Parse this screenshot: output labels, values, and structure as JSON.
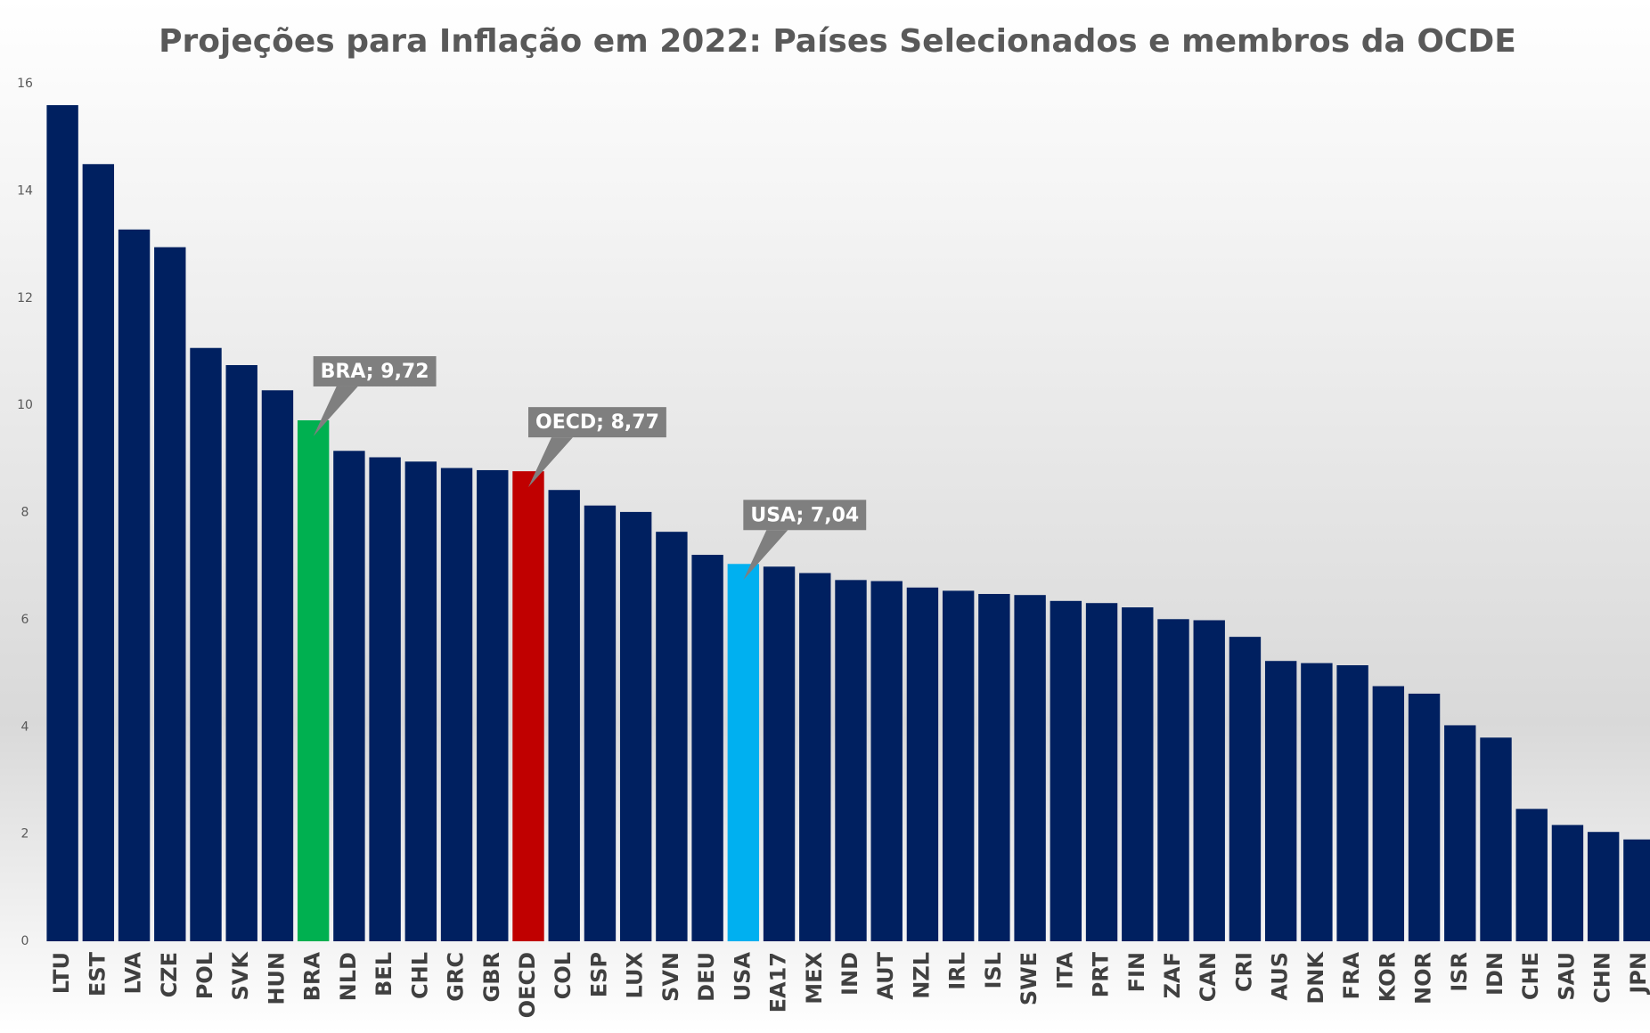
{
  "chart_data": {
    "type": "bar",
    "title": "Projeções para Inflação em 2022: Países Selecionados e membros da OCDE",
    "categories": [
      "LTU",
      "EST",
      "LVA",
      "CZE",
      "POL",
      "SVK",
      "HUN",
      "BRA",
      "NLD",
      "BEL",
      "CHL",
      "GRC",
      "GBR",
      "OECD",
      "COL",
      "ESP",
      "LUX",
      "SVN",
      "DEU",
      "USA",
      "EA17",
      "MEX",
      "IND",
      "AUT",
      "NZL",
      "IRL",
      "ISL",
      "SWE",
      "ITA",
      "PRT",
      "FIN",
      "ZAF",
      "CAN",
      "CRI",
      "AUS",
      "DNK",
      "FRA",
      "KOR",
      "NOR",
      "ISR",
      "IDN",
      "CHE",
      "SAU",
      "CHN",
      "JPN"
    ],
    "values": [
      15.6,
      14.5,
      13.28,
      12.95,
      11.07,
      10.75,
      10.28,
      9.72,
      9.15,
      9.03,
      8.95,
      8.83,
      8.79,
      8.77,
      8.42,
      8.13,
      8.01,
      7.64,
      7.21,
      7.04,
      6.99,
      6.87,
      6.74,
      6.72,
      6.6,
      6.54,
      6.48,
      6.46,
      6.35,
      6.31,
      6.23,
      6.01,
      5.99,
      5.68,
      5.23,
      5.19,
      5.15,
      4.76,
      4.62,
      4.03,
      3.8,
      2.47,
      2.17,
      2.04,
      1.9
    ],
    "value_labels": [
      null,
      null,
      null,
      null,
      null,
      null,
      null,
      "BRA; 9,72",
      null,
      null,
      null,
      null,
      null,
      "OECD; 8,77",
      null,
      null,
      null,
      null,
      null,
      "USA; 7,04",
      null,
      null,
      null,
      null,
      null,
      null,
      null,
      null,
      null,
      null,
      null,
      null,
      null,
      null,
      null,
      null,
      null,
      null,
      null,
      null,
      null,
      null,
      null,
      null,
      null
    ],
    "color": "#002060",
    "colors": [
      "#002060",
      "#002060",
      "#002060",
      "#002060",
      "#002060",
      "#002060",
      "#002060",
      "#00b050",
      "#002060",
      "#002060",
      "#002060",
      "#002060",
      "#002060",
      "#c00000",
      "#002060",
      "#002060",
      "#002060",
      "#002060",
      "#002060",
      "#00b0f0",
      "#002060",
      "#002060",
      "#002060",
      "#002060",
      "#002060",
      "#002060",
      "#002060",
      "#002060",
      "#002060",
      "#002060",
      "#002060",
      "#002060",
      "#002060",
      "#002060",
      "#002060",
      "#002060",
      "#002060",
      "#002060",
      "#002060",
      "#002060",
      "#002060",
      "#002060",
      "#002060",
      "#002060",
      "#002060"
    ],
    "ylim": [
      0,
      16
    ],
    "yticks": [
      0,
      2,
      4,
      6,
      8,
      10,
      12,
      14,
      16
    ],
    "grid": false
  }
}
